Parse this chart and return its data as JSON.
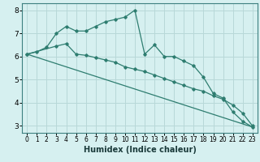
{
  "title": "",
  "xlabel": "Humidex (Indice chaleur)",
  "bg_color": "#d6f0f0",
  "grid_color": "#b8d8d8",
  "line_color": "#2e7d70",
  "spine_color": "#3d8080",
  "xlim": [
    -0.5,
    23.5
  ],
  "ylim": [
    2.7,
    8.3
  ],
  "xticks": [
    0,
    1,
    2,
    3,
    4,
    5,
    6,
    7,
    8,
    9,
    10,
    11,
    12,
    13,
    14,
    15,
    16,
    17,
    18,
    19,
    20,
    21,
    22,
    23
  ],
  "yticks": [
    3,
    4,
    5,
    6,
    7,
    8
  ],
  "line1_x": [
    0,
    1,
    2,
    3,
    4,
    5,
    6,
    7,
    8,
    9,
    10,
    11,
    12,
    13,
    14,
    15,
    16,
    17,
    18,
    19,
    20,
    21,
    22,
    23
  ],
  "line1_y": [
    6.1,
    6.2,
    6.4,
    7.0,
    7.3,
    7.1,
    7.1,
    7.3,
    7.5,
    7.6,
    7.7,
    8.0,
    6.1,
    6.5,
    6.0,
    6.0,
    5.8,
    5.6,
    5.1,
    4.4,
    4.2,
    3.6,
    3.2,
    2.95
  ],
  "line2_x": [
    0,
    3,
    4,
    5,
    6,
    7,
    8,
    9,
    10,
    11,
    12,
    13,
    14,
    15,
    16,
    17,
    18,
    19,
    20,
    21,
    22,
    23
  ],
  "line2_y": [
    6.1,
    6.45,
    6.55,
    6.1,
    6.05,
    5.95,
    5.85,
    5.75,
    5.55,
    5.45,
    5.35,
    5.2,
    5.05,
    4.9,
    4.75,
    4.6,
    4.5,
    4.3,
    4.15,
    3.9,
    3.55,
    3.0
  ],
  "line3_x": [
    0,
    23
  ],
  "line3_y": [
    6.1,
    2.95
  ],
  "xlabel_fontsize": 7.0,
  "tick_fontsize_x": 5.5,
  "tick_fontsize_y": 6.5
}
